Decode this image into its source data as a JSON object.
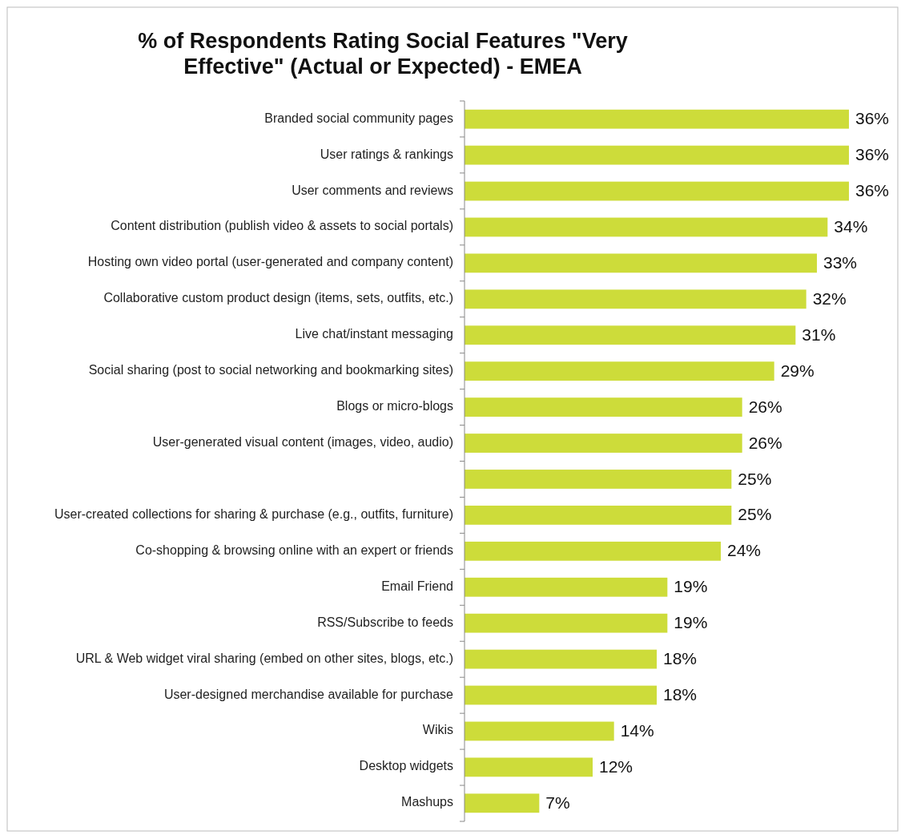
{
  "chart_data": {
    "type": "bar",
    "orientation": "horizontal",
    "title": "% of Respondents Rating Social Features \"Very Effective\" (Actual or Expected) - EMEA",
    "categories": [
      "Branded social community pages",
      "User ratings & rankings",
      "User comments and reviews",
      "Content distribution (publish video & assets to social portals)",
      "Hosting own video portal (user-generated and company content)",
      "Collaborative custom product design (items, sets, outfits, etc.)",
      "Live chat/instant messaging",
      "Social sharing (post to social networking and bookmarking sites)",
      "Blogs or micro-blogs",
      "User-generated visual content (images, video, audio)",
      null,
      "User-created collections for sharing & purchase (e.g., outfits, furniture)",
      "Co-shopping & browsing online with an expert or friends",
      "Email Friend",
      "RSS/Subscribe to feeds",
      "URL & Web widget viral sharing (embed on other sites, blogs, etc.)",
      "User-designed merchandise available for purchase",
      "Wikis",
      "Desktop widgets",
      "Mashups"
    ],
    "values": [
      36,
      36,
      36,
      34,
      33,
      32,
      31,
      29,
      26,
      26,
      25,
      25,
      24,
      19,
      19,
      18,
      18,
      14,
      12,
      7
    ],
    "value_labels": [
      "36%",
      "36%",
      "36%",
      "34%",
      "33%",
      "32%",
      "31%",
      "29%",
      "26%",
      "26%",
      "25%",
      "25%",
      "24%",
      "19%",
      "19%",
      "18%",
      "18%",
      "14%",
      "12%",
      "7%"
    ],
    "color": "#cddc3a"
  }
}
